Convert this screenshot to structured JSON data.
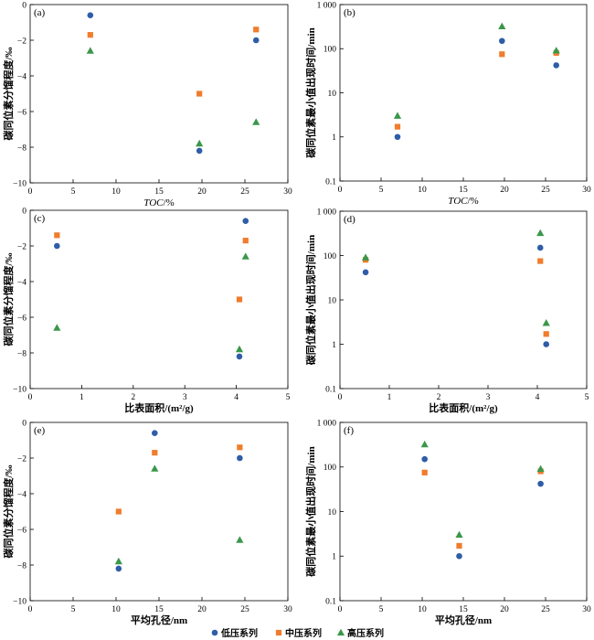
{
  "figure": {
    "legend_placement": "bottom-center"
  },
  "chart_data": [
    {
      "panel_label": "(a)",
      "type": "scatter",
      "xlabel_parts": [
        {
          "text": "TOC",
          "italic": true
        },
        {
          "text": "/%",
          "italic": false
        }
      ],
      "ylabel": "碳同位素分馏程度/‰",
      "xscale": "linear",
      "yscale": "linear",
      "xlim": [
        0,
        30
      ],
      "ylim": [
        -10,
        0
      ],
      "xticks": [
        0,
        5,
        10,
        15,
        20,
        25,
        30
      ],
      "xtick_labels": [
        "0",
        "5",
        "10",
        "15",
        "20",
        "25",
        "30"
      ],
      "yticks": [
        -10,
        -8,
        -6,
        -4,
        -2,
        0
      ],
      "ytick_labels": [
        "−10",
        "−8",
        "−6",
        "−4",
        "−2",
        "0"
      ],
      "grid": false,
      "series": [
        {
          "name": "低压系列",
          "marker": "circle",
          "color": "#2f5da8",
          "x": [
            7.0,
            19.7,
            26.3
          ],
          "y": [
            -0.6,
            -8.2,
            -2.0
          ]
        },
        {
          "name": "中压系列",
          "marker": "square",
          "color": "#f07c2c",
          "x": [
            7.0,
            19.7,
            26.3
          ],
          "y": [
            -1.7,
            -5.0,
            -1.4
          ]
        },
        {
          "name": "高压系列",
          "marker": "triangle",
          "color": "#3a974a",
          "x": [
            7.0,
            19.7,
            26.3
          ],
          "y": [
            -2.6,
            -7.8,
            -6.6
          ]
        }
      ]
    },
    {
      "panel_label": "(b)",
      "type": "scatter",
      "xlabel_parts": [
        {
          "text": "TOC",
          "italic": true
        },
        {
          "text": "/%",
          "italic": false
        }
      ],
      "ylabel": "碳同位素最小值出现时间/min",
      "xscale": "linear",
      "yscale": "log",
      "xlim": [
        0,
        30
      ],
      "ylim": [
        0.1,
        1000
      ],
      "xticks": [
        0,
        5,
        10,
        15,
        20,
        25,
        30
      ],
      "xtick_labels": [
        "0",
        "5",
        "10",
        "15",
        "20",
        "25",
        "30"
      ],
      "yticks": [
        0.1,
        1,
        10,
        100,
        1000
      ],
      "ytick_labels": [
        "0.1",
        "1",
        "10",
        "100",
        "1 000"
      ],
      "grid": false,
      "series": [
        {
          "name": "低压系列",
          "marker": "circle",
          "color": "#2f5da8",
          "x": [
            7.0,
            19.7,
            26.3
          ],
          "y": [
            1.0,
            150,
            42
          ]
        },
        {
          "name": "中压系列",
          "marker": "square",
          "color": "#f07c2c",
          "x": [
            7.0,
            19.7,
            26.3
          ],
          "y": [
            1.7,
            75,
            80
          ]
        },
        {
          "name": "高压系列",
          "marker": "triangle",
          "color": "#3a974a",
          "x": [
            7.0,
            19.7,
            26.3
          ],
          "y": [
            3.0,
            320,
            90
          ]
        }
      ]
    },
    {
      "panel_label": "(c)",
      "type": "scatter",
      "xlabel_parts": [
        {
          "text": "比表面积/(m²/g)",
          "italic": false
        }
      ],
      "ylabel": "碳同位素分馏程度/‰",
      "xscale": "linear",
      "yscale": "linear",
      "xlim": [
        0,
        5
      ],
      "ylim": [
        -10,
        0
      ],
      "xticks": [
        0,
        1,
        2,
        3,
        4,
        5
      ],
      "xtick_labels": [
        "0",
        "1",
        "2",
        "3",
        "4",
        "5"
      ],
      "yticks": [
        -10,
        -8,
        -6,
        -4,
        -2,
        0
      ],
      "ytick_labels": [
        "−10",
        "−8",
        "−6",
        "−4",
        "−2",
        "0"
      ],
      "grid": false,
      "series": [
        {
          "name": "低压系列",
          "marker": "circle",
          "color": "#2f5da8",
          "x": [
            4.18,
            4.06,
            0.52
          ],
          "y": [
            -0.6,
            -8.2,
            -2.0
          ]
        },
        {
          "name": "中压系列",
          "marker": "square",
          "color": "#f07c2c",
          "x": [
            4.18,
            4.06,
            0.52
          ],
          "y": [
            -1.7,
            -5.0,
            -1.4
          ]
        },
        {
          "name": "高压系列",
          "marker": "triangle",
          "color": "#3a974a",
          "x": [
            4.18,
            4.06,
            0.52
          ],
          "y": [
            -2.6,
            -7.8,
            -6.6
          ]
        }
      ]
    },
    {
      "panel_label": "(d)",
      "type": "scatter",
      "xlabel_parts": [
        {
          "text": "比表面积/(m²/g)",
          "italic": false
        }
      ],
      "ylabel": "碳同位素最小值出现时间/min",
      "xscale": "linear",
      "yscale": "log",
      "xlim": [
        0,
        5
      ],
      "ylim": [
        0.1,
        1000
      ],
      "xticks": [
        0,
        1,
        2,
        3,
        4,
        5
      ],
      "xtick_labels": [
        "0",
        "1",
        "2",
        "3",
        "4",
        "5"
      ],
      "yticks": [
        0.1,
        1,
        10,
        100,
        1000
      ],
      "ytick_labels": [
        "0.1",
        "1",
        "10",
        "100",
        "1 000"
      ],
      "grid": false,
      "series": [
        {
          "name": "低压系列",
          "marker": "circle",
          "color": "#2f5da8",
          "x": [
            4.18,
            4.06,
            0.52
          ],
          "y": [
            1.0,
            150,
            42
          ]
        },
        {
          "name": "中压系列",
          "marker": "square",
          "color": "#f07c2c",
          "x": [
            4.18,
            4.06,
            0.52
          ],
          "y": [
            1.7,
            75,
            80
          ]
        },
        {
          "name": "高压系列",
          "marker": "triangle",
          "color": "#3a974a",
          "x": [
            4.18,
            4.06,
            0.52
          ],
          "y": [
            3.0,
            320,
            90
          ]
        }
      ]
    },
    {
      "panel_label": "(e)",
      "type": "scatter",
      "xlabel_parts": [
        {
          "text": "平均孔径/nm",
          "italic": false
        }
      ],
      "ylabel": "碳同位素分馏程度/‰",
      "xscale": "linear",
      "yscale": "linear",
      "xlim": [
        0,
        30
      ],
      "ylim": [
        -10,
        0
      ],
      "xticks": [
        0,
        5,
        10,
        15,
        20,
        25,
        30
      ],
      "xtick_labels": [
        "0",
        "5",
        "10",
        "15",
        "20",
        "25",
        "30"
      ],
      "yticks": [
        -10,
        -8,
        -6,
        -4,
        -2,
        0
      ],
      "ytick_labels": [
        "−10",
        "−8",
        "−6",
        "−4",
        "−2",
        "0"
      ],
      "grid": false,
      "series": [
        {
          "name": "低压系列",
          "marker": "circle",
          "color": "#2f5da8",
          "x": [
            14.5,
            10.3,
            24.4
          ],
          "y": [
            -0.6,
            -8.2,
            -2.0
          ]
        },
        {
          "name": "中压系列",
          "marker": "square",
          "color": "#f07c2c",
          "x": [
            14.5,
            10.3,
            24.4
          ],
          "y": [
            -1.7,
            -5.0,
            -1.4
          ]
        },
        {
          "name": "高压系列",
          "marker": "triangle",
          "color": "#3a974a",
          "x": [
            14.5,
            10.3,
            24.4
          ],
          "y": [
            -2.6,
            -7.8,
            -6.6
          ]
        }
      ]
    },
    {
      "panel_label": "(f)",
      "type": "scatter",
      "xlabel_parts": [
        {
          "text": "平均孔径/nm",
          "italic": false
        }
      ],
      "ylabel": "碳同位素最小值出现时间/min",
      "xscale": "linear",
      "yscale": "log",
      "xlim": [
        0,
        30
      ],
      "ylim": [
        0.1,
        1000
      ],
      "xticks": [
        0,
        5,
        10,
        15,
        20,
        25,
        30
      ],
      "xtick_labels": [
        "0",
        "5",
        "10",
        "15",
        "20",
        "25",
        "30"
      ],
      "yticks": [
        0.1,
        1,
        10,
        100,
        1000
      ],
      "ytick_labels": [
        "0.1",
        "1",
        "10",
        "100",
        "1 000"
      ],
      "grid": false,
      "series": [
        {
          "name": "低压系列",
          "marker": "circle",
          "color": "#2f5da8",
          "x": [
            14.5,
            10.3,
            24.4
          ],
          "y": [
            1.0,
            150,
            42
          ]
        },
        {
          "name": "中压系列",
          "marker": "square",
          "color": "#f07c2c",
          "x": [
            14.5,
            10.3,
            24.4
          ],
          "y": [
            1.7,
            75,
            80
          ]
        },
        {
          "name": "高压系列",
          "marker": "triangle",
          "color": "#3a974a",
          "x": [
            14.5,
            10.3,
            24.4
          ],
          "y": [
            3.0,
            320,
            90
          ]
        }
      ]
    }
  ]
}
